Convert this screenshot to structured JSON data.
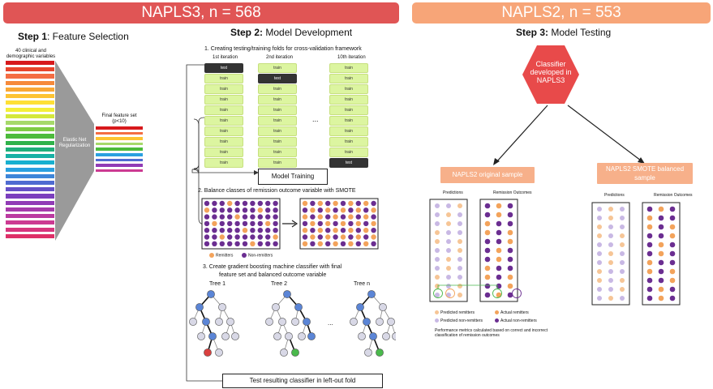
{
  "banners": {
    "left": "NAPLS3, n = 568",
    "right": "NAPLS2, n = 553",
    "left_color": "#e05555",
    "right_color": "#f7a578"
  },
  "step1": {
    "num": "Step 1",
    "title": ": Feature Selection",
    "input_label": "40 clinical and demographic variables",
    "funnel_label": "Elastic Net Regularization",
    "final_label": "Final feature set (p<10)"
  },
  "step2": {
    "num": "Step 2:",
    "title": " Model Development",
    "sub1": "1. Creating testing/training folds for cross-validation framework",
    "iter1": "1st iteration",
    "iter2": "2nd iteration",
    "iter3": "10th iteration",
    "test": "test",
    "train": "train",
    "ellipsis": "...",
    "model_training": "Model Training",
    "sub2": "2. Balance classes of remission outcome variable with SMOTE",
    "remitters": "Remitters",
    "nonremitters": "Non-remitters",
    "sub3a": "3. Create gradient boosting machine classifier with final",
    "sub3b": "feature set and balanced outcome variable",
    "tree1": "Tree 1",
    "tree2": "Tree 2",
    "treen": "Tree n",
    "tree_ellipsis": "...",
    "test_box": "Test resulting classifier in left-out fold"
  },
  "step3": {
    "num": "Step 3:",
    "title": " Model Testing",
    "classifier": "Classifier developed in NAPLS3",
    "original": "NAPLS2 original sample",
    "smote": "NAPLS2 SMOTE balanced sample",
    "predictions": "Predictions",
    "outcomes": "Remission Outcomes",
    "pred_rem": "Predicted remitters",
    "pred_non": "Predicted non-remitters",
    "act_rem": "Actual remitters",
    "act_non": "Actual non-remitters",
    "metrics": "Performance metrics calculated based on correct and incorrect classification of remission outcomes"
  }
}
